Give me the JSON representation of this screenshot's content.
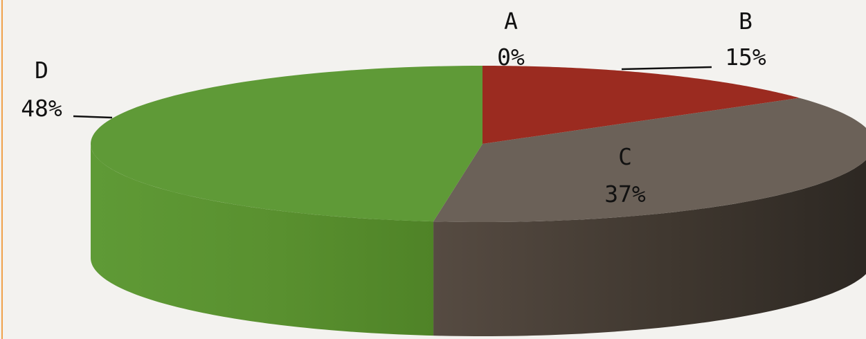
{
  "chart_data": {
    "type": "pie",
    "style": "3d",
    "title": "",
    "slices": [
      {
        "label": "A",
        "value": 0,
        "percent_text": "0%",
        "color": "#4f81bd"
      },
      {
        "label": "B",
        "value": 15,
        "percent_text": "15%",
        "color": "#9b2b20"
      },
      {
        "label": "C",
        "value": 37,
        "percent_text": "37%",
        "color": "#6b6158"
      },
      {
        "label": "D",
        "value": 48,
        "percent_text": "48%",
        "color": "#5f9a37"
      }
    ],
    "legend": "none"
  }
}
